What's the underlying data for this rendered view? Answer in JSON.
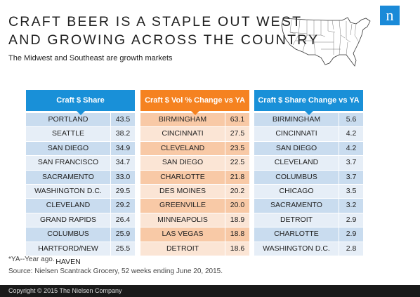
{
  "title_line1": "CRAFT BEER IS A STAPLE OUT WEST",
  "title_line2": "AND GROWING ACROSS THE COUNTRY",
  "subtitle": "The Midwest and Southeast are growth markets",
  "logo": "n",
  "colors": {
    "blue": "#1990d8",
    "orange": "#f58220"
  },
  "tables": [
    {
      "header": "Craft $ Share",
      "rows": [
        {
          "name": "PORTLAND",
          "value": "43.5"
        },
        {
          "name": "SEATTLE",
          "value": "38.2"
        },
        {
          "name": "SAN DIEGO",
          "value": "34.9"
        },
        {
          "name": "SAN FRANCISCO",
          "value": "34.7"
        },
        {
          "name": "SACRAMENTO",
          "value": "33.0"
        },
        {
          "name": "WASHINGTON D.C.",
          "value": "29.5"
        },
        {
          "name": "CLEVELAND",
          "value": "29.2"
        },
        {
          "name": "GRAND RAPIDS",
          "value": "26.4"
        },
        {
          "name": "COLUMBUS",
          "value": "25.9"
        },
        {
          "name": "HARTFORD/NEW HAVEN",
          "value": "25.5"
        }
      ]
    },
    {
      "header": "Craft $ Vol % Change vs YA",
      "rows": [
        {
          "name": "BIRMINGHAM",
          "value": "63.1"
        },
        {
          "name": "CINCINNATI",
          "value": "27.5"
        },
        {
          "name": "CLEVELAND",
          "value": "23.5"
        },
        {
          "name": "SAN DIEGO",
          "value": "22.5"
        },
        {
          "name": "CHARLOTTE",
          "value": "21.8"
        },
        {
          "name": "DES MOINES",
          "value": "20.2"
        },
        {
          "name": "GREENVILLE",
          "value": "20.0"
        },
        {
          "name": "MINNEAPOLIS",
          "value": "18.9"
        },
        {
          "name": "LAS VEGAS",
          "value": "18.8"
        },
        {
          "name": "DETROIT",
          "value": "18.6"
        }
      ]
    },
    {
      "header": "Craft $ Share Change vs YA",
      "rows": [
        {
          "name": "BIRMINGHAM",
          "value": "5.6"
        },
        {
          "name": "CINCINNATI",
          "value": "4.2"
        },
        {
          "name": "SAN DIEGO",
          "value": "4.2"
        },
        {
          "name": "CLEVELAND",
          "value": "3.7"
        },
        {
          "name": "COLUMBUS",
          "value": "3.7"
        },
        {
          "name": "CHICAGO",
          "value": "3.5"
        },
        {
          "name": "SACRAMENTO",
          "value": "3.2"
        },
        {
          "name": "DETROIT",
          "value": "2.9"
        },
        {
          "name": "CHARLOTTE",
          "value": "2.9"
        },
        {
          "name": "WASHINGTON D.C.",
          "value": "2.8"
        }
      ]
    }
  ],
  "footnote": "*YA--Year ago.",
  "source": "Source: Nielsen Scantrack Grocery, 52 weeks ending June 20, 2015.",
  "copyright": "Copyright © 2015 The Nielsen Company"
}
